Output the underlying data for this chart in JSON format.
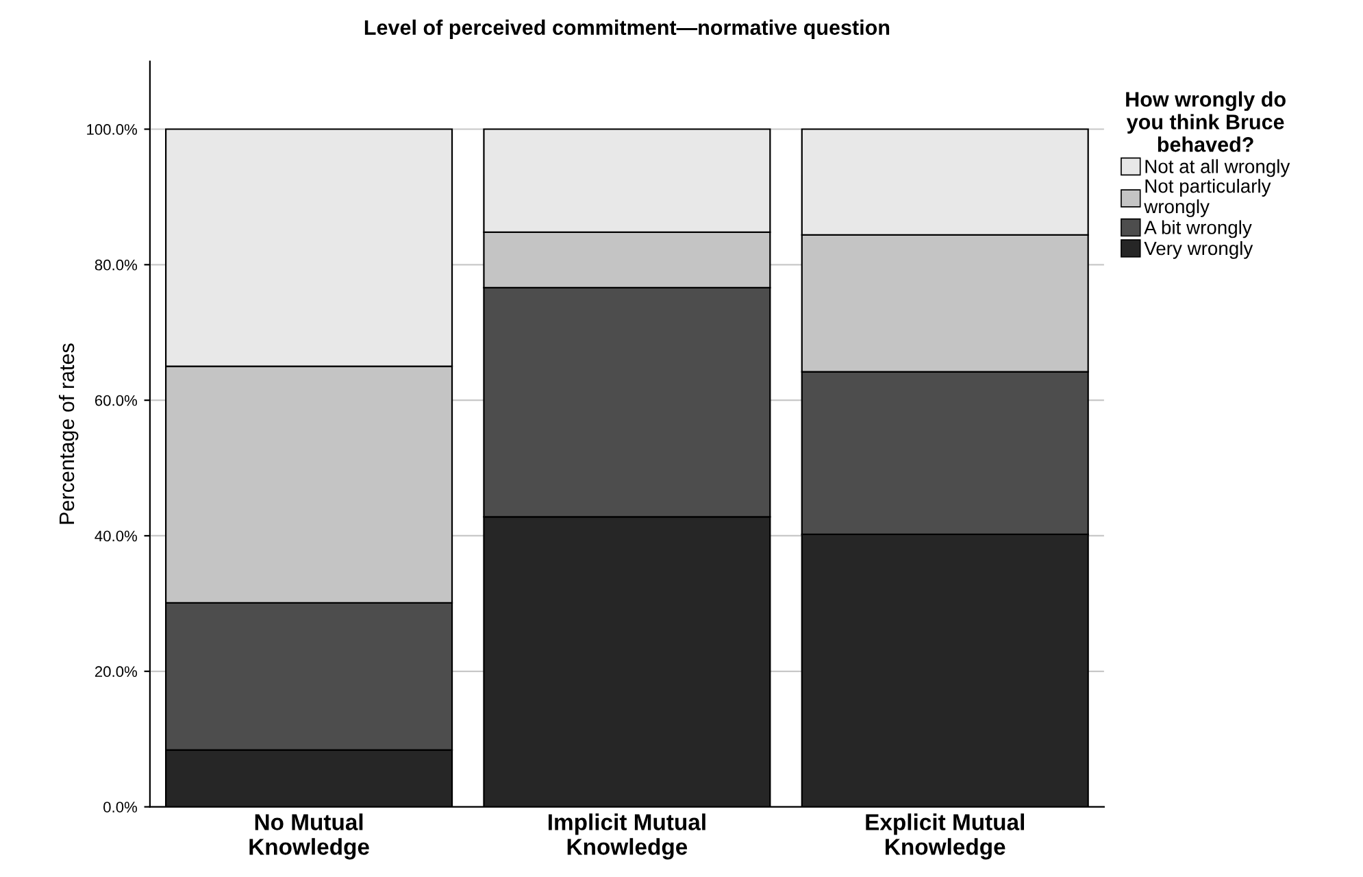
{
  "chart_data": {
    "type": "bar",
    "stacked": true,
    "title": "Level of perceived commitment—normative question",
    "ylabel": "Percentage of rates",
    "legend_title": "How wrongly do\nyou think Bruce\nbehaved?",
    "categories": [
      "No Mutual\nKnowledge",
      "Implicit Mutual\nKnowledge",
      "Explicit Mutual\nKnowledge"
    ],
    "series": [
      {
        "name": "Very wrongly",
        "color": "#262626",
        "values": [
          8.4,
          42.8,
          40.2
        ]
      },
      {
        "name": "A bit wrongly",
        "color": "#4d4d4d",
        "values": [
          21.7,
          33.8,
          24.0
        ]
      },
      {
        "name": "Not particularly\nwrongly",
        "color": "#c4c4c4",
        "values": [
          34.9,
          8.2,
          20.2
        ]
      },
      {
        "name": "Not at all wrongly",
        "color": "#e8e8e8",
        "values": [
          35.0,
          15.2,
          15.6
        ]
      }
    ],
    "ylim": [
      0,
      110
    ],
    "yticks": [
      {
        "value": 0,
        "label": "0.0%"
      },
      {
        "value": 20,
        "label": "20.0%"
      },
      {
        "value": 40,
        "label": "40.0%"
      },
      {
        "value": 60,
        "label": "60.0%"
      },
      {
        "value": 80,
        "label": "80.0%"
      },
      {
        "value": 100,
        "label": "100.0%"
      }
    ],
    "grid": "y",
    "legend": "right"
  }
}
